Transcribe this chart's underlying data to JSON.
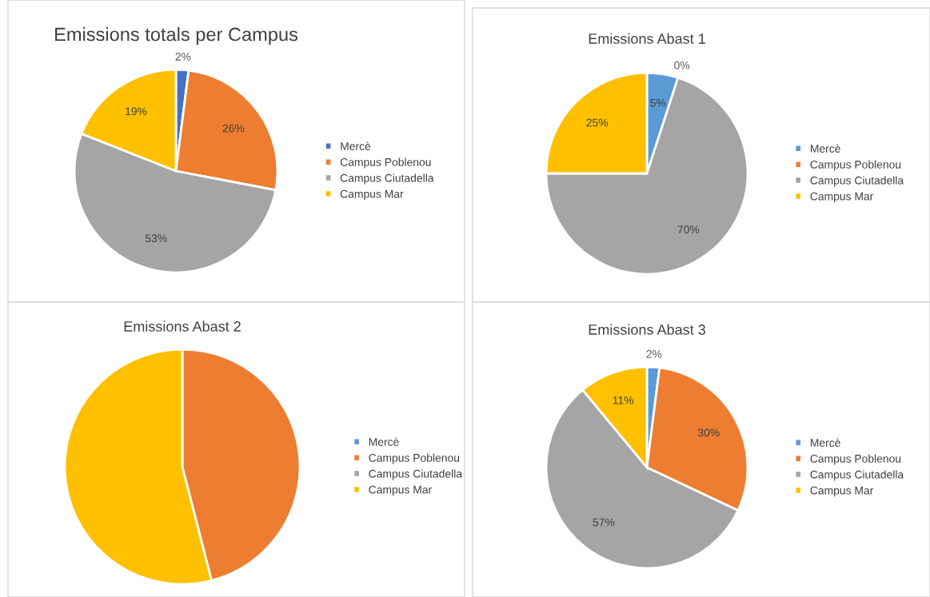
{
  "chart_data": [
    {
      "type": "pie",
      "title": "Emissions totals per Campus",
      "categories": [
        "Mercè",
        "Campus Poblenou",
        "Campus Ciutadella",
        "Campus Mar"
      ],
      "values": [
        2,
        26,
        53,
        19
      ],
      "colors": [
        "#4472c4",
        "#ed7d31",
        "#a5a5a5",
        "#ffc000"
      ],
      "value_labels": [
        "2%",
        "26%",
        "53%",
        "19%"
      ],
      "legend": "right"
    },
    {
      "type": "pie",
      "title": "Emissions Abast 1",
      "categories": [
        "Mercè",
        "Campus Poblenou",
        "Campus Ciutadella",
        "Campus Mar"
      ],
      "values": [
        5,
        0,
        70,
        25
      ],
      "colors": [
        "#5b9bd5",
        "#ed7d31",
        "#a5a5a5",
        "#ffc000"
      ],
      "value_labels": [
        "5%",
        "0%",
        "70%",
        "25%"
      ],
      "legend": "right"
    },
    {
      "type": "pie",
      "title": "Emissions Abast 2",
      "categories": [
        "Mercè",
        "Campus Poblenou",
        "Campus Ciutadella",
        "Campus Mar"
      ],
      "values": [
        0,
        46,
        0,
        54
      ],
      "colors": [
        "#5b9bd5",
        "#ed7d31",
        "#a5a5a5",
        "#ffc000"
      ],
      "legend": "right"
    },
    {
      "type": "pie",
      "title": "Emissions Abast 3",
      "categories": [
        "Mercè",
        "Campus Poblenou",
        "Campus Ciutadella",
        "Campus Mar"
      ],
      "values": [
        2,
        30,
        57,
        11
      ],
      "colors": [
        "#5b9bd5",
        "#ed7d31",
        "#a5a5a5",
        "#ffc000"
      ],
      "value_labels": [
        "2%",
        "30%",
        "57%",
        "11%"
      ],
      "legend": "right"
    }
  ]
}
